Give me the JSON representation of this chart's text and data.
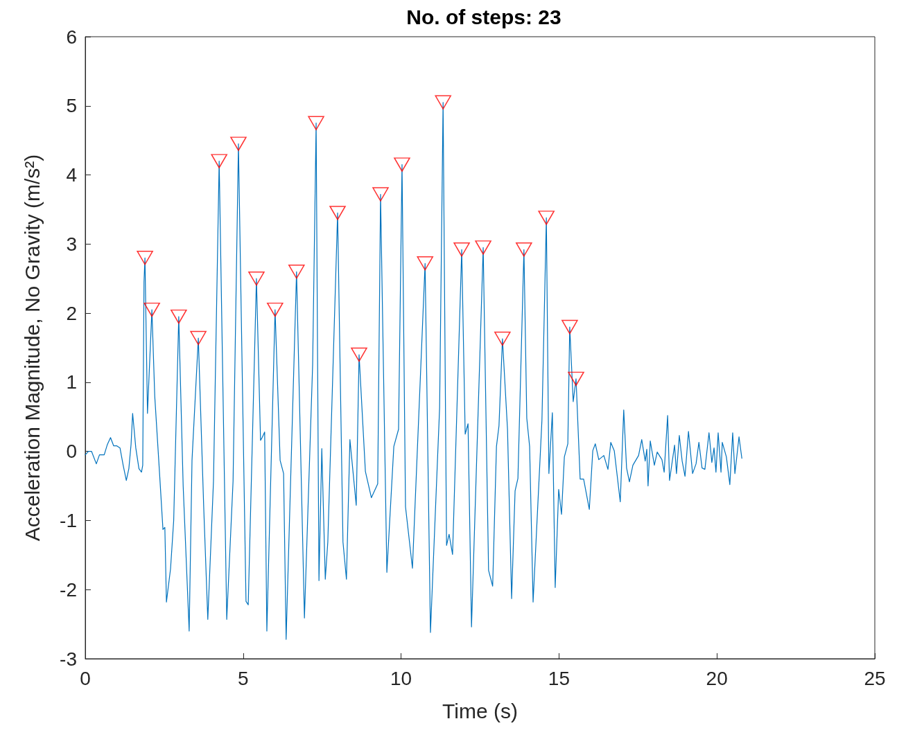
{
  "chart_data": {
    "type": "line",
    "title": "No. of steps: 23",
    "xlabel": "Time (s)",
    "ylabel": "Acceleration Magnitude, No Gravity (m/s²)",
    "xlim": [
      0,
      25
    ],
    "xticks": [
      0,
      5,
      10,
      15,
      20,
      25
    ],
    "ylim": [
      -3,
      6
    ],
    "yticks": [
      -3,
      -2,
      -1,
      0,
      1,
      2,
      3,
      4,
      5,
      6
    ],
    "grid": false,
    "series": [
      {
        "marker": "none",
        "color": "#0072bd",
        "x": [
          0,
          0.1,
          0.2,
          0.35,
          0.45,
          0.6,
          0.7,
          0.8,
          0.9,
          1.0,
          1.1,
          1.2,
          1.3,
          1.38,
          1.45,
          1.5,
          1.6,
          1.7,
          1.78,
          1.82,
          1.86,
          1.89,
          1.97,
          2.11,
          2.2,
          2.35,
          2.46,
          2.52,
          2.57,
          2.7,
          2.8,
          2.96,
          3.1,
          3.29,
          3.38,
          3.58,
          3.75,
          3.88,
          4.06,
          4.24,
          4.48,
          4.68,
          4.85,
          5.09,
          5.16,
          5.42,
          5.55,
          5.6,
          5.68,
          5.75,
          6.01,
          6.17,
          6.28,
          6.36,
          6.69,
          6.94,
          7.2,
          7.31,
          7.4,
          7.49,
          7.6,
          7.68,
          7.99,
          8.16,
          8.27,
          8.38,
          8.58,
          8.67,
          8.87,
          9.06,
          9.26,
          9.35,
          9.55,
          9.77,
          9.92,
          10.03,
          10.14,
          10.36,
          10.76,
          10.93,
          11.22,
          11.33,
          11.44,
          11.52,
          11.63,
          11.92,
          12.03,
          12.12,
          12.23,
          12.6,
          12.77,
          12.9,
          13.02,
          13.1,
          13.21,
          13.37,
          13.5,
          13.61,
          13.7,
          13.89,
          13.98,
          14.07,
          14.18,
          14.46,
          14.6,
          14.68,
          14.79,
          14.88,
          14.99,
          15.08,
          15.17,
          15.28,
          15.34,
          15.45,
          15.54,
          15.67,
          15.78,
          15.96,
          16.07,
          16.15,
          16.26,
          16.42,
          16.55,
          16.64,
          16.75,
          16.94,
          17.05,
          17.14,
          17.23,
          17.34,
          17.52,
          17.62,
          17.73,
          17.78,
          17.82,
          17.89,
          18.02,
          18.11,
          18.26,
          18.33,
          18.44,
          18.5,
          18.66,
          18.72,
          18.81,
          18.9,
          18.99,
          19.1,
          19.23,
          19.34,
          19.43,
          19.53,
          19.62,
          19.75,
          19.84,
          19.91,
          19.97,
          20.04,
          20.13,
          20.17,
          20.3,
          20.41,
          20.5,
          20.57,
          20.7,
          20.79
        ],
        "values": [
          -0.05,
          0,
          0,
          -0.18,
          -0.05,
          -0.05,
          0.1,
          0.2,
          0.08,
          0.08,
          0.05,
          -0.2,
          -0.42,
          -0.25,
          0.1,
          0.55,
          0.05,
          -0.25,
          -0.3,
          -0.2,
          2.45,
          2.8,
          0.55,
          2.05,
          0.8,
          -0.3,
          -1.13,
          -1.1,
          -2.18,
          -1.7,
          -1.0,
          1.95,
          -0.5,
          -2.6,
          -0.13,
          1.64,
          -0.8,
          -2.43,
          -0.43,
          4.2,
          -2.43,
          -0.43,
          4.45,
          -2.17,
          -2.22,
          2.5,
          0.16,
          0.2,
          0.28,
          -2.6,
          2.05,
          -0.13,
          -0.32,
          -2.72,
          2.6,
          -2.41,
          1.26,
          4.75,
          -1.87,
          0.04,
          -1.85,
          -1.31,
          3.45,
          -1.31,
          -1.85,
          0.17,
          -0.78,
          1.4,
          -0.29,
          -0.67,
          -0.47,
          3.72,
          -1.75,
          0.07,
          0.32,
          4.15,
          -0.8,
          -1.69,
          2.72,
          -2.62,
          0.63,
          5.05,
          -1.36,
          -1.2,
          -1.49,
          2.92,
          0.25,
          0.4,
          -2.54,
          2.95,
          -1.72,
          -1.95,
          0.07,
          0.37,
          1.63,
          0.32,
          -2.13,
          -0.57,
          -0.39,
          2.92,
          0.48,
          0.07,
          -2.18,
          0.45,
          3.38,
          -0.32,
          0.56,
          -1.97,
          -0.55,
          -0.91,
          -0.08,
          0.11,
          1.8,
          0.72,
          1.05,
          -0.4,
          -0.4,
          -0.84,
          0.01,
          0.11,
          -0.12,
          -0.06,
          -0.26,
          0.13,
          0.01,
          -0.73,
          0.6,
          -0.24,
          -0.44,
          -0.2,
          -0.06,
          0.17,
          -0.14,
          0.03,
          -0.5,
          0.15,
          -0.2,
          -0.01,
          -0.12,
          -0.3,
          0.52,
          -0.42,
          0.09,
          -0.32,
          0.23,
          -0.14,
          -0.36,
          0.29,
          -0.32,
          -0.18,
          0.13,
          -0.24,
          -0.26,
          0.27,
          -0.16,
          0.05,
          -0.3,
          0.27,
          -0.3,
          0.13,
          -0.08,
          -0.48,
          0.27,
          -0.32,
          0.21,
          -0.1
        ]
      },
      {
        "type": "scatter",
        "marker": "triangle",
        "color": "#ff0000",
        "x": [
          1.89,
          2.11,
          2.96,
          3.58,
          4.24,
          4.85,
          5.42,
          6.01,
          6.69,
          7.31,
          7.99,
          8.67,
          9.35,
          10.03,
          10.76,
          11.33,
          11.92,
          12.6,
          13.21,
          13.89,
          14.6,
          15.34,
          15.54
        ],
        "values": [
          2.8,
          2.05,
          1.95,
          1.64,
          4.2,
          4.45,
          2.5,
          2.05,
          2.6,
          4.75,
          3.45,
          1.4,
          3.72,
          4.15,
          2.72,
          5.05,
          2.92,
          2.95,
          1.63,
          2.92,
          3.38,
          1.8,
          1.05
        ]
      }
    ]
  }
}
